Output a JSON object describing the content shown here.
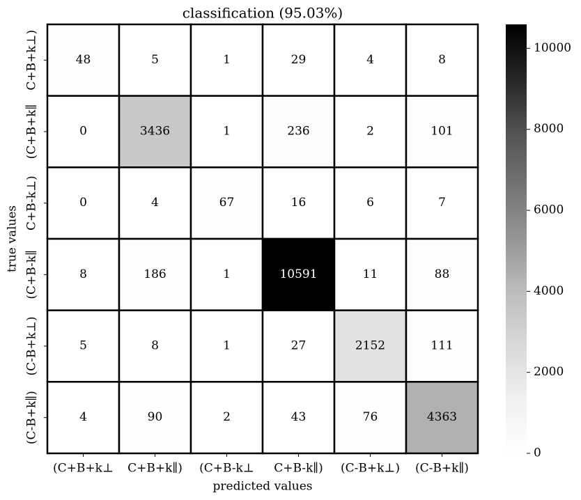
{
  "chart_data": {
    "type": "heatmap",
    "title": "classification (95.03%)",
    "x_label": "predicted values",
    "y_label": "true values",
    "x_categories": [
      "(C+B+k⊥",
      "C+B+k∥)",
      "(C+B-k⊥",
      "C+B-k∥)",
      "(C-B+k⊥)",
      "(C-B+k∥)"
    ],
    "y_categories": [
      "C+B+k⊥)",
      "(C+B+k∥",
      "C+B-k⊥)",
      "(C+B-k∥",
      "(C-B+k⊥)",
      "(C-B+k∥)"
    ],
    "values": [
      [
        48,
        5,
        1,
        29,
        4,
        8
      ],
      [
        0,
        3436,
        1,
        236,
        2,
        101
      ],
      [
        0,
        4,
        67,
        16,
        6,
        7
      ],
      [
        8,
        186,
        1,
        10591,
        11,
        88
      ],
      [
        5,
        8,
        1,
        27,
        2152,
        111
      ],
      [
        4,
        90,
        2,
        43,
        76,
        4363
      ]
    ],
    "colormap": [
      "#ffffff",
      "#f0f0f0",
      "#d9d9d9",
      "#bdbdbd",
      "#969696",
      "#737373",
      "#525252",
      "#252525",
      "#000000"
    ],
    "cell_border_color": "#000000",
    "colorbar_lim": [
      0,
      10591
    ],
    "colorbar_ticks": [
      0,
      2000,
      4000,
      6000,
      8000,
      10000
    ]
  }
}
